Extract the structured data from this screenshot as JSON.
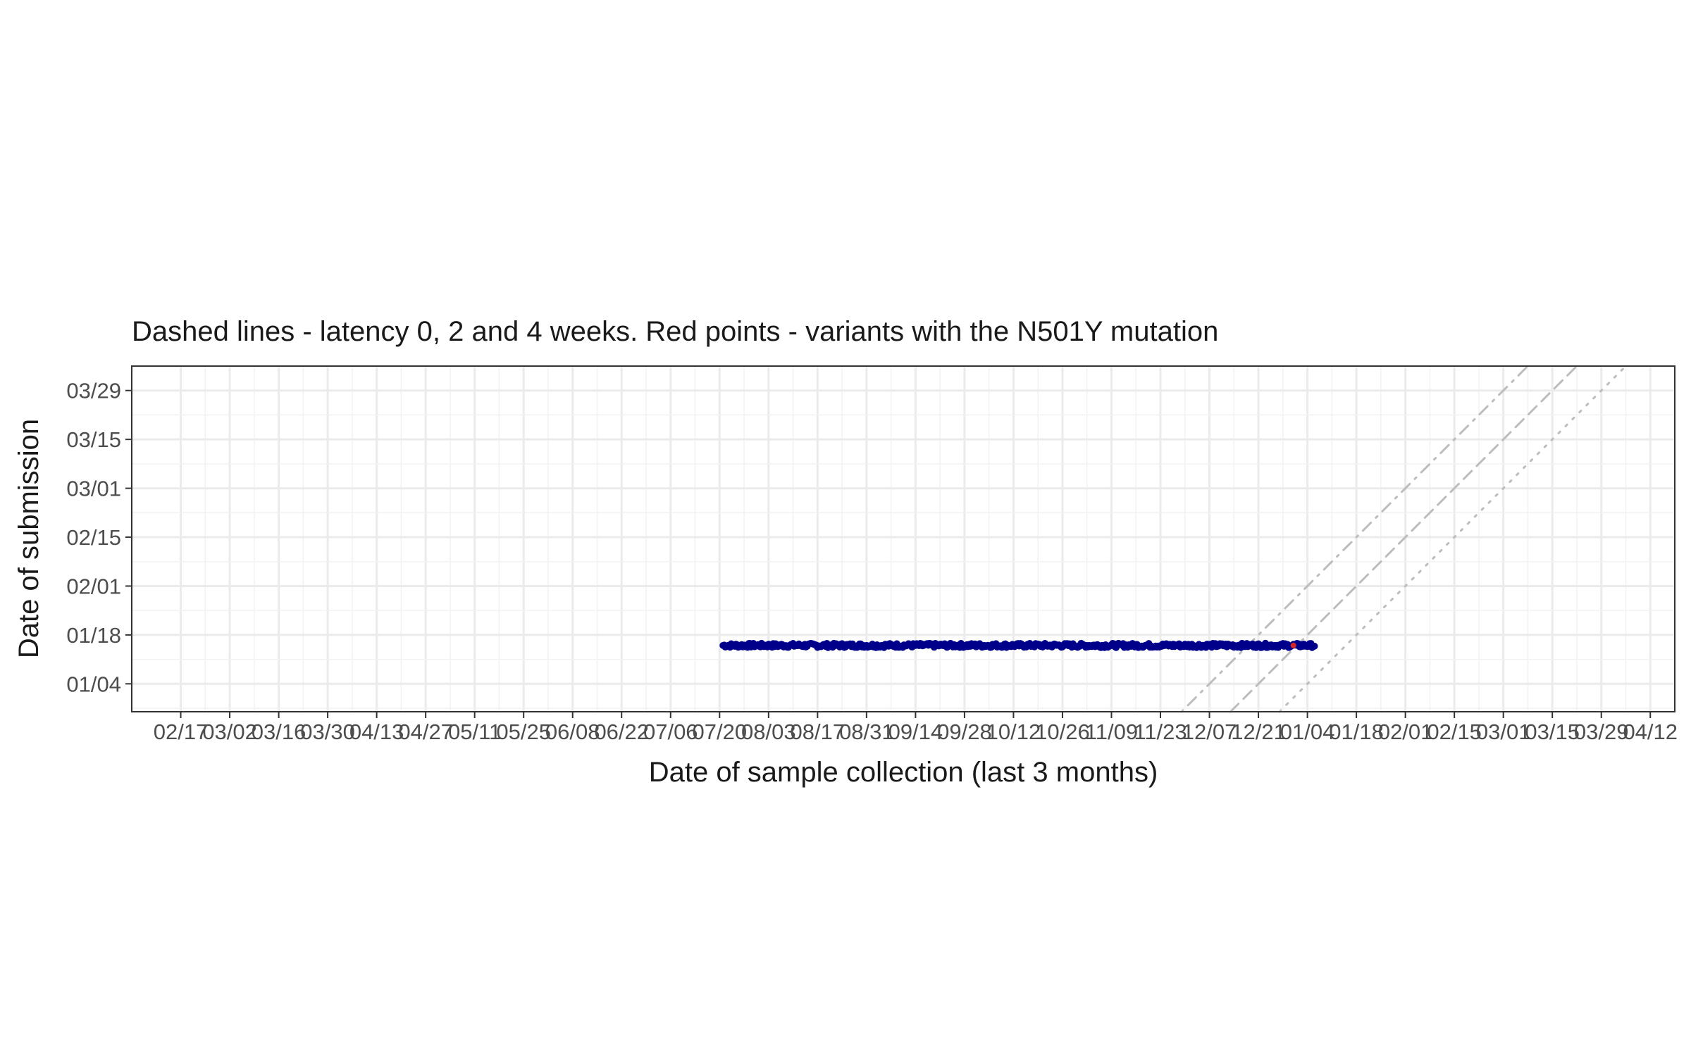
{
  "chart_data": {
    "type": "scatter",
    "title": "Dashed lines - latency 0, 2 and 4 weeks. Red points - variants with the N501Y mutation",
    "xlabel": "Date of sample collection (last 3 months)",
    "ylabel": "Date of submission",
    "x_axis": {
      "scale": "date",
      "range": [
        "2020-02-03",
        "2021-04-19"
      ],
      "tick_labels": [
        "02/17",
        "03/02",
        "03/16",
        "03/30",
        "04/13",
        "04/27",
        "05/11",
        "05/25",
        "06/08",
        "06/22",
        "07/06",
        "07/20",
        "08/03",
        "08/17",
        "08/31",
        "09/14",
        "09/28",
        "10/12",
        "10/26",
        "11/09",
        "11/23",
        "12/07",
        "12/21",
        "01/04",
        "01/18",
        "02/01",
        "02/15",
        "03/01",
        "03/15",
        "03/29",
        "04/12"
      ],
      "tick_dates": [
        "2020-02-17",
        "2020-03-02",
        "2020-03-16",
        "2020-03-30",
        "2020-04-13",
        "2020-04-27",
        "2020-05-11",
        "2020-05-25",
        "2020-06-08",
        "2020-06-22",
        "2020-07-06",
        "2020-07-20",
        "2020-08-03",
        "2020-08-17",
        "2020-08-31",
        "2020-09-14",
        "2020-09-28",
        "2020-10-12",
        "2020-10-26",
        "2020-11-09",
        "2020-11-23",
        "2020-12-07",
        "2020-12-21",
        "2021-01-04",
        "2021-01-18",
        "2021-02-01",
        "2021-02-15",
        "2021-03-01",
        "2021-03-15",
        "2021-03-29",
        "2021-04-12"
      ]
    },
    "y_axis": {
      "scale": "date",
      "range": [
        "2020-12-27",
        "2021-04-05"
      ],
      "tick_labels": [
        "01/04",
        "01/18",
        "02/01",
        "02/15",
        "03/01",
        "03/15",
        "03/29"
      ],
      "tick_dates": [
        "2021-01-04",
        "2021-01-18",
        "2021-02-01",
        "2021-02-15",
        "2021-03-01",
        "2021-03-15",
        "2021-03-29"
      ]
    },
    "grid": true,
    "reference_lines": [
      {
        "latency_weeks": 0,
        "style": "dotted",
        "color": "#bdbdbd"
      },
      {
        "latency_weeks": 2,
        "style": "dashed",
        "color": "#bdbdbd"
      },
      {
        "latency_weeks": 4,
        "style": "dotdash",
        "color": "#bdbdbd"
      }
    ],
    "series": [
      {
        "color": "#00008b",
        "points": {
          "x_start": "2020-07-21",
          "x_end": "2021-01-06",
          "y": "2021-01-15",
          "y_jitter": [
            "2021-01-14",
            "2021-01-16"
          ]
        }
      },
      {
        "color": "#d62728",
        "points": [
          {
            "x": "2020-12-31",
            "y": "2021-01-15"
          }
        ]
      }
    ]
  }
}
